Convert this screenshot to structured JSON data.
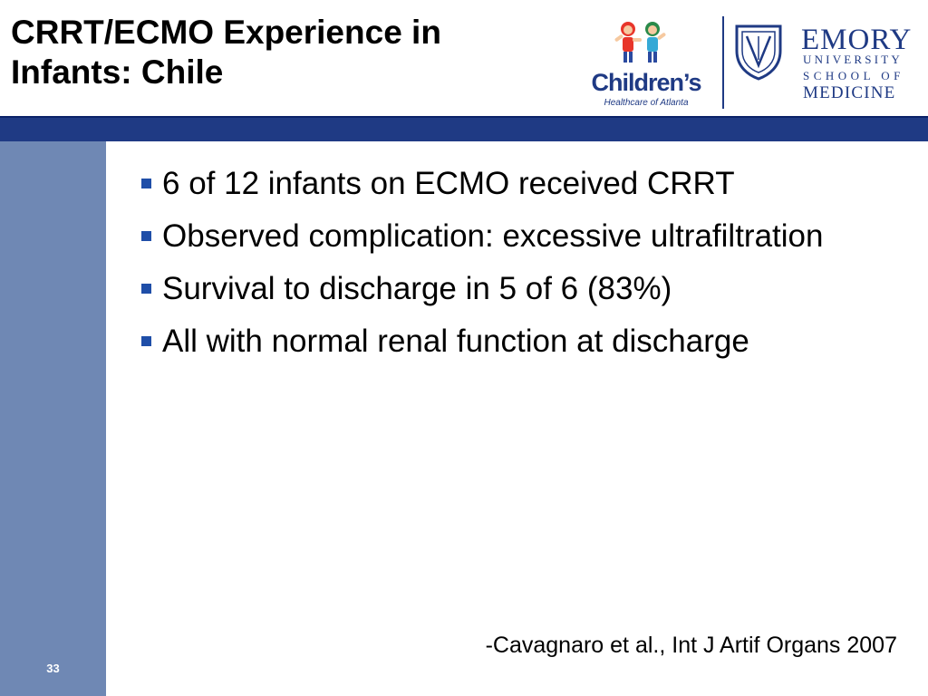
{
  "slide": {
    "title_line1": "CRRT/ECMO Experience in",
    "title_line2": "Infants: Chile",
    "bullets": [
      "6 of 12 infants on ECMO received CRRT",
      "Observed complication: excessive ultrafiltration",
      "Survival to discharge in 5 of 6 (83%)",
      "All with normal renal function at discharge"
    ],
    "citation": "-Cavagnaro et al., Int J Artif Organs 2007",
    "slide_number": "33"
  },
  "logos": {
    "childrens_name": "Children’s",
    "childrens_tagline": "Healthcare of Atlanta",
    "emory_name": "EMORY",
    "emory_line1": "UNIVERSITY",
    "emory_line2": "SCHOOL OF",
    "emory_line3": "MEDICINE"
  },
  "colors": {
    "band": "#1f3a84",
    "sidebar": "#6f88b4",
    "bullet": "#1f4ea8"
  }
}
